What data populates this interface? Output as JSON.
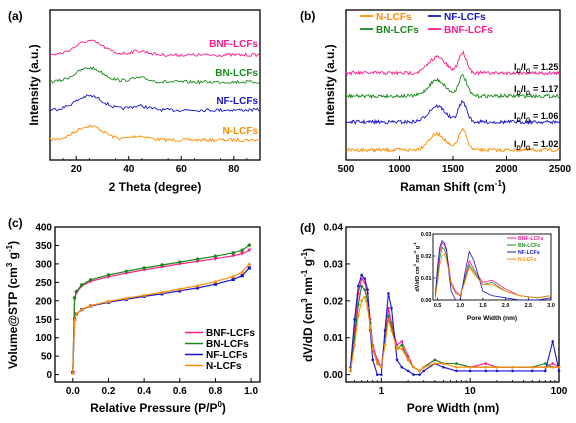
{
  "colors": {
    "N-LCFs": "#ff8c00",
    "BN-LCFs": "#1a8a1a",
    "NF-LCFs": "#1616cc",
    "BNF-LCFs": "#ff1a8c"
  },
  "chart_data": [
    {
      "panel": "(a)",
      "type": "line",
      "xlabel": "2 Theta (degree)",
      "ylabel": "Intensity (a.u.)",
      "xlim": [
        10,
        90
      ],
      "xticks": [
        20,
        40,
        60,
        80
      ],
      "y_ticks_shown": false,
      "series_labels": [
        "BNF-LCFs",
        "BN-LCFs",
        "NF-LCFs",
        "N-LCFs"
      ],
      "series": [
        {
          "name": "N-LCFs",
          "offset": 0,
          "broad_peak_2theta": 25,
          "secondary_peak_2theta": 44
        },
        {
          "name": "NF-LCFs",
          "offset": 1,
          "broad_peak_2theta": 25,
          "secondary_peak_2theta": 44
        },
        {
          "name": "BN-LCFs",
          "offset": 2,
          "broad_peak_2theta": 25,
          "secondary_peak_2theta": 44
        },
        {
          "name": "BNF-LCFs",
          "offset": 3,
          "broad_peak_2theta": 25,
          "secondary_peak_2theta": 44
        }
      ]
    },
    {
      "panel": "(b)",
      "type": "line",
      "xlabel": "Raman Shift (cm",
      "xlabel_sup": "-1",
      "xlabel_end": ")",
      "ylabel": "Intensity (a.u.)",
      "xlim": [
        500,
        2500
      ],
      "xticks": [
        500,
        1000,
        1500,
        2000,
        2500
      ],
      "y_ticks_shown": false,
      "legend": [
        "N-LCFs",
        "NF-LCFs",
        "BN-LCFs",
        "BNF-LCFs"
      ],
      "series": [
        {
          "name": "N-LCFs",
          "offset": 0,
          "D_band": 1350,
          "G_band": 1590,
          "ratio_text": "1.02"
        },
        {
          "name": "NF-LCFs",
          "offset": 1,
          "D_band": 1350,
          "G_band": 1590,
          "ratio_text": "1.06"
        },
        {
          "name": "BN-LCFs",
          "offset": 2,
          "D_band": 1350,
          "G_band": 1590,
          "ratio_text": "1.17"
        },
        {
          "name": "BNF-LCFs",
          "offset": 3,
          "D_band": 1350,
          "G_band": 1590,
          "ratio_text": "1.25"
        }
      ],
      "ratio_prefix": "I",
      "ratio_sub_D": "D",
      "ratio_sub_G": "G",
      "ratio_mid": "/I",
      "ratio_eq": " = "
    },
    {
      "panel": "(c)",
      "type": "line",
      "xlabel": "Relative Pressure (P/P",
      "xlabel_sup": "0",
      "xlabel_end": ")",
      "ylabel": "Volume@STP (cm",
      "ylabel_sup1": "3",
      "ylabel_mid": " g",
      "ylabel_sup2": "-1",
      "ylabel_end": ")",
      "xlim": [
        -0.1,
        1.05
      ],
      "ylim": [
        -20,
        400
      ],
      "xticks": [
        0.0,
        0.2,
        0.4,
        0.6,
        0.8,
        1.0
      ],
      "yticks": [
        0,
        50,
        100,
        150,
        200,
        250,
        300,
        350,
        400
      ],
      "legend": [
        "BNF-LCFs",
        "BN-LCFs",
        "NF-LCFs",
        "N-LCFs"
      ],
      "x": [
        0.0,
        0.01,
        0.02,
        0.05,
        0.1,
        0.2,
        0.3,
        0.4,
        0.5,
        0.6,
        0.7,
        0.8,
        0.9,
        0.95,
        0.99
      ],
      "series": [
        {
          "name": "BNF-LCFs",
          "values": [
            5,
            205,
            222,
            240,
            253,
            265,
            275,
            284,
            292,
            300,
            307,
            314,
            322,
            328,
            337
          ]
        },
        {
          "name": "BN-LCFs",
          "values": [
            5,
            208,
            225,
            243,
            257,
            270,
            280,
            289,
            297,
            305,
            313,
            321,
            330,
            337,
            351
          ]
        },
        {
          "name": "NF-LCFs",
          "values": [
            5,
            150,
            164,
            176,
            186,
            196,
            204,
            212,
            219,
            227,
            235,
            245,
            258,
            268,
            289
          ]
        },
        {
          "name": "N-LCFs",
          "values": [
            5,
            150,
            164,
            177,
            187,
            198,
            207,
            215,
            223,
            232,
            241,
            252,
            266,
            278,
            300
          ]
        }
      ]
    },
    {
      "panel": "(d)",
      "type": "line",
      "xlabel": "Pore Width (nm)",
      "ylabel": "dV/dD (cm",
      "ylabel_sup1": "3",
      "ylabel_mid": " nm",
      "ylabel_sup2": "-1",
      "ylabel_mid2": " g",
      "ylabel_sup3": "-1",
      "ylabel_end": ")",
      "x_scale": "log",
      "xlim": [
        0.4,
        100
      ],
      "ylim": [
        -0.002,
        0.04
      ],
      "xticks": [
        1,
        10,
        100
      ],
      "yticks": [
        0.0,
        0.01,
        0.02,
        0.03,
        0.04
      ],
      "ytick_labels": [
        "0.00",
        "0.01",
        "0.02",
        "0.03",
        "0.04"
      ],
      "x": [
        0.45,
        0.5,
        0.55,
        0.6,
        0.65,
        0.7,
        0.75,
        0.8,
        0.9,
        1.0,
        1.1,
        1.2,
        1.3,
        1.5,
        1.7,
        2.0,
        2.3,
        2.7,
        3.0,
        4.0,
        5.0,
        7.0,
        10,
        15,
        20,
        30,
        50,
        70,
        85,
        100
      ],
      "series": [
        {
          "name": "BNF-LCFs",
          "values": [
            0.001,
            0.012,
            0.022,
            0.026,
            0.025,
            0.022,
            0.015,
            0.008,
            0.004,
            0.002,
            0.01,
            0.018,
            0.014,
            0.008,
            0.009,
            0.005,
            0.002,
            0.001,
            0.002,
            0.004,
            0.003,
            0.003,
            0.002,
            0.003,
            0.002,
            0.002,
            0.002,
            0.002,
            0.003,
            0.002
          ]
        },
        {
          "name": "BN-LCFs",
          "values": [
            0.001,
            0.01,
            0.019,
            0.024,
            0.023,
            0.02,
            0.014,
            0.007,
            0.003,
            0.002,
            0.009,
            0.016,
            0.013,
            0.007,
            0.008,
            0.004,
            0.002,
            0.001,
            0.002,
            0.004,
            0.003,
            0.003,
            0.002,
            0.002,
            0.002,
            0.002,
            0.002,
            0.003,
            0.002,
            0.002
          ]
        },
        {
          "name": "NF-LCFs",
          "values": [
            0.002,
            0.015,
            0.024,
            0.027,
            0.026,
            0.023,
            0.012,
            0.004,
            0.0,
            0.0,
            0.012,
            0.022,
            0.018,
            0.004,
            0.002,
            0.001,
            0.0,
            0.0,
            0.001,
            0.003,
            0.002,
            0.001,
            0.001,
            0.001,
            0.001,
            0.001,
            0.001,
            0.001,
            0.009,
            0.001
          ]
        },
        {
          "name": "N-LCFs",
          "values": [
            0.001,
            0.008,
            0.016,
            0.02,
            0.021,
            0.018,
            0.013,
            0.007,
            0.003,
            0.002,
            0.008,
            0.015,
            0.012,
            0.007,
            0.007,
            0.004,
            0.002,
            0.001,
            0.002,
            0.003,
            0.003,
            0.002,
            0.002,
            0.002,
            0.002,
            0.002,
            0.002,
            0.002,
            0.002,
            0.002
          ]
        }
      ],
      "inset": {
        "xlabel": "Pore Width (nm)",
        "ylabel": "dV/dD cm",
        "ylabel_sup1": "3",
        "ylabel_mid": " nm",
        "ylabel_sup2": "-1",
        "ylabel_mid2": " g",
        "ylabel_sup3": "-1",
        "xlim": [
          0.4,
          3.0
        ],
        "ylim": [
          0.0,
          0.03
        ],
        "xticks": [
          0.5,
          1.0,
          1.5,
          2.0,
          2.5,
          3.0
        ],
        "xtick_labels": [
          "0.5",
          "1.0",
          "1.5",
          "2.0",
          "2.5",
          "3.0"
        ],
        "yticks": [
          0.0,
          0.01,
          0.02,
          0.03
        ],
        "ytick_labels": [
          "0.00",
          "0.01",
          "0.02",
          "0.03"
        ],
        "legend": [
          "BNF-LCFs",
          "BN-LCFs",
          "NF-LCFs",
          "N-LCFs"
        ]
      }
    }
  ]
}
